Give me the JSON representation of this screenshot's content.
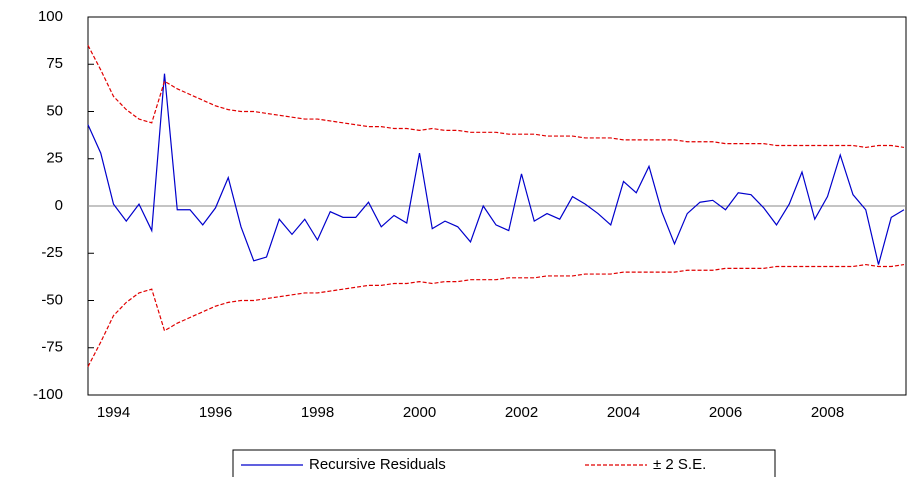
{
  "chart_data": {
    "type": "line",
    "categories": [
      null,
      null,
      "1994",
      null,
      null,
      null,
      null,
      null,
      null,
      null,
      "1996",
      null,
      null,
      null,
      null,
      null,
      null,
      null,
      "1998",
      null,
      null,
      null,
      null,
      null,
      null,
      null,
      "2000",
      null,
      null,
      null,
      null,
      null,
      null,
      null,
      "2002",
      null,
      null,
      null,
      null,
      null,
      null,
      null,
      "2004",
      null,
      null,
      null,
      null,
      null,
      null,
      null,
      "2006",
      null,
      null,
      null,
      null,
      null,
      null,
      null,
      "2008",
      null,
      null,
      null,
      null,
      null,
      null
    ],
    "series": [
      {
        "name": "Recursive Residuals",
        "color": "#0000cc",
        "style": "solid",
        "values": [
          43,
          28,
          1,
          -8,
          1,
          -13,
          70,
          -2,
          -2,
          -10,
          -1,
          15,
          -11,
          -29,
          -27,
          -7,
          -15,
          -7,
          -18,
          -3,
          -6,
          -6,
          2,
          -11,
          -5,
          -9,
          28,
          -12,
          -8,
          -11,
          -19,
          0,
          -10,
          -13,
          17,
          -8,
          -4,
          -7,
          5,
          1,
          -4,
          -10,
          13,
          7,
          21,
          -3,
          -20,
          -4,
          2,
          3,
          -2,
          7,
          6,
          -1,
          -10,
          1,
          18,
          -7,
          5,
          27,
          6,
          -2,
          -31,
          -6,
          -2
        ]
      },
      {
        "name": "± 2 S.E.",
        "color": "#e00000",
        "style": "dashed",
        "upper": [
          85,
          72,
          58,
          51,
          46,
          44,
          66,
          62,
          59,
          56,
          53,
          51,
          50,
          50,
          49,
          48,
          47,
          46,
          46,
          45,
          44,
          43,
          42,
          42,
          41,
          41,
          40,
          41,
          40,
          40,
          39,
          39,
          39,
          38,
          38,
          38,
          37,
          37,
          37,
          36,
          36,
          36,
          35,
          35,
          35,
          35,
          35,
          34,
          34,
          34,
          33,
          33,
          33,
          33,
          32,
          32,
          32,
          32,
          32,
          32,
          32,
          31,
          32,
          32,
          31
        ],
        "lower": [
          -85,
          -72,
          -58,
          -51,
          -46,
          -44,
          -66,
          -62,
          -59,
          -56,
          -53,
          -51,
          -50,
          -50,
          -49,
          -48,
          -47,
          -46,
          -46,
          -45,
          -44,
          -43,
          -42,
          -42,
          -41,
          -41,
          -40,
          -41,
          -40,
          -40,
          -39,
          -39,
          -39,
          -38,
          -38,
          -38,
          -37,
          -37,
          -37,
          -36,
          -36,
          -36,
          -35,
          -35,
          -35,
          -35,
          -35,
          -34,
          -34,
          -34,
          -33,
          -33,
          -33,
          -33,
          -32,
          -32,
          -32,
          -32,
          -32,
          -32,
          -32,
          -31,
          -32,
          -32,
          -31
        ]
      }
    ],
    "ylim": [
      -100,
      100
    ],
    "yticks": [
      -100,
      -75,
      -50,
      -25,
      0,
      25,
      50,
      75,
      100
    ],
    "zero_line": true,
    "legend": "bottom"
  }
}
